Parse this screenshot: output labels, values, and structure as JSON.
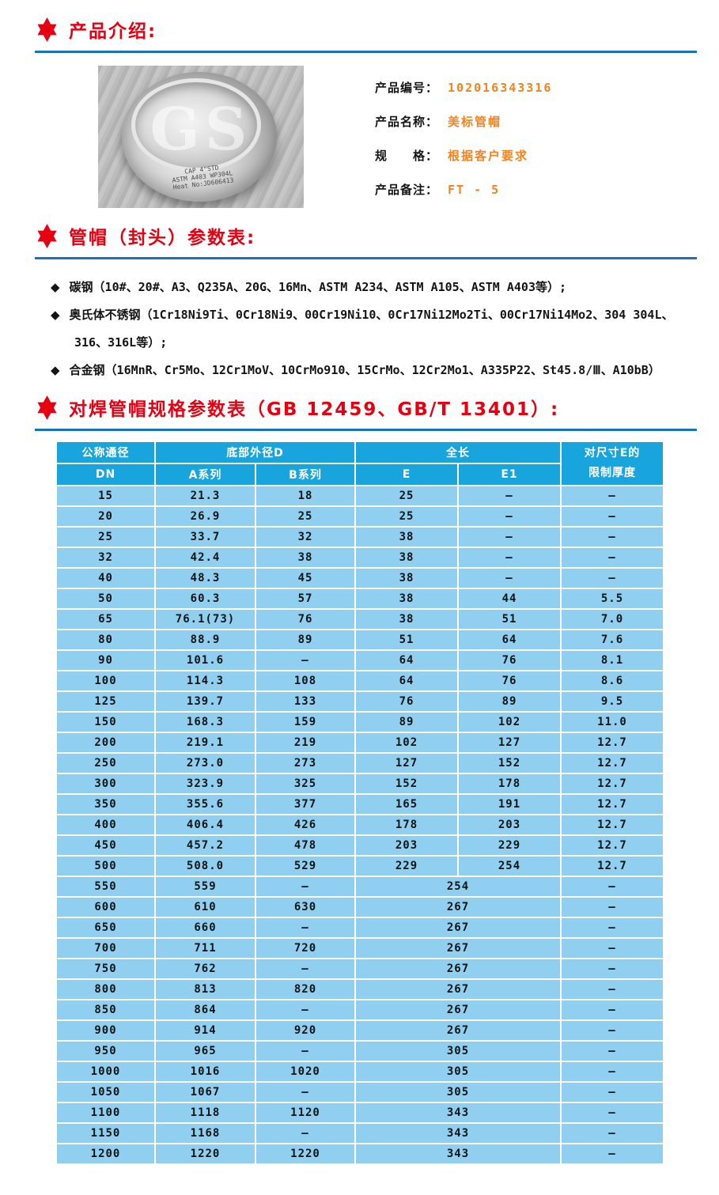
{
  "colors": {
    "section_title_red": "#e60012",
    "star_red": "#e60012",
    "divider_blue": "#1873bb",
    "value_orange": "#f5831f",
    "table_header_bg": "#18a4dd",
    "table_header_text": "#ffffff",
    "table_row_bg": "#90cff0",
    "table_cell_text": "#141414"
  },
  "sections": {
    "intro_title": "产品介绍:",
    "params_title": "管帽（封头）参数表:",
    "spec_title": "对焊管帽规格参数表（GB 12459、GB/T 13401）:"
  },
  "product": {
    "image": {
      "watermark": "GS",
      "engraving": [
        "CAP 4\"STD",
        "ASTM A403 WP304L",
        "Heat No:JD606413"
      ]
    },
    "fields": [
      {
        "label": "产品编号：",
        "value": "102016343316"
      },
      {
        "label": "产品名称：",
        "value": "美标管帽"
      },
      {
        "label": "规　　格：",
        "value": "根据客户要求"
      },
      {
        "label": "产品备注：",
        "value": "FT - 5"
      }
    ]
  },
  "materials": {
    "bullet": "◆",
    "items": [
      "碳钢（10#、20#、A3、Q235A、20G、16Mn、ASTM A234、ASTM A105、ASTM A403等）;",
      "奥氏体不锈钢（1Cr18Ni9Ti、0Cr18Ni9、00Cr19Ni10、0Cr17Ni12Mo2Ti、00Cr17Ni14Mo2、304 304L、316、316L等）;",
      "合金钢（16MnR、Cr5Mo、12Cr1MoV、10CrMo910、15CrMo、12Cr2Mo1、A335P22、St45.8/Ⅲ、A10bB）"
    ]
  },
  "table": {
    "header": {
      "dn_top": "公称通径",
      "dn_bottom": "DN",
      "group_d": "底部外径D",
      "col_a": "A系列",
      "col_b": "B系列",
      "group_len": "全长",
      "col_e": "E",
      "col_e1": "E1",
      "thickness_line1": "对尺寸E的",
      "thickness_line2": "限制厚度"
    },
    "rows": [
      {
        "dn": "15",
        "a": "21.3",
        "b": "18",
        "e": "25",
        "e1": "–",
        "t": "–",
        "merged": false
      },
      {
        "dn": "20",
        "a": "26.9",
        "b": "25",
        "e": "25",
        "e1": "–",
        "t": "–",
        "merged": false
      },
      {
        "dn": "25",
        "a": "33.7",
        "b": "32",
        "e": "38",
        "e1": "–",
        "t": "–",
        "merged": false
      },
      {
        "dn": "32",
        "a": "42.4",
        "b": "38",
        "e": "38",
        "e1": "–",
        "t": "–",
        "merged": false
      },
      {
        "dn": "40",
        "a": "48.3",
        "b": "45",
        "e": "38",
        "e1": "–",
        "t": "–",
        "merged": false
      },
      {
        "dn": "50",
        "a": "60.3",
        "b": "57",
        "e": "38",
        "e1": "44",
        "t": "5.5",
        "merged": false
      },
      {
        "dn": "65",
        "a": "76.1(73)",
        "b": "76",
        "e": "38",
        "e1": "51",
        "t": "7.0",
        "merged": false
      },
      {
        "dn": "80",
        "a": "88.9",
        "b": "89",
        "e": "51",
        "e1": "64",
        "t": "7.6",
        "merged": false
      },
      {
        "dn": "90",
        "a": "101.6",
        "b": "–",
        "e": "64",
        "e1": "76",
        "t": "8.1",
        "merged": false
      },
      {
        "dn": "100",
        "a": "114.3",
        "b": "108",
        "e": "64",
        "e1": "76",
        "t": "8.6",
        "merged": false
      },
      {
        "dn": "125",
        "a": "139.7",
        "b": "133",
        "e": "76",
        "e1": "89",
        "t": "9.5",
        "merged": false
      },
      {
        "dn": "150",
        "a": "168.3",
        "b": "159",
        "e": "89",
        "e1": "102",
        "t": "11.0",
        "merged": false
      },
      {
        "dn": "200",
        "a": "219.1",
        "b": "219",
        "e": "102",
        "e1": "127",
        "t": "12.7",
        "merged": false
      },
      {
        "dn": "250",
        "a": "273.0",
        "b": "273",
        "e": "127",
        "e1": "152",
        "t": "12.7",
        "merged": false
      },
      {
        "dn": "300",
        "a": "323.9",
        "b": "325",
        "e": "152",
        "e1": "178",
        "t": "12.7",
        "merged": false
      },
      {
        "dn": "350",
        "a": "355.6",
        "b": "377",
        "e": "165",
        "e1": "191",
        "t": "12.7",
        "merged": false
      },
      {
        "dn": "400",
        "a": "406.4",
        "b": "426",
        "e": "178",
        "e1": "203",
        "t": "12.7",
        "merged": false
      },
      {
        "dn": "450",
        "a": "457.2",
        "b": "478",
        "e": "203",
        "e1": "229",
        "t": "12.7",
        "merged": false
      },
      {
        "dn": "500",
        "a": "508.0",
        "b": "529",
        "e": "229",
        "e1": "254",
        "t": "12.7",
        "merged": false
      },
      {
        "dn": "550",
        "a": "559",
        "b": "–",
        "e": "254",
        "e1": "",
        "t": "–",
        "merged": true
      },
      {
        "dn": "600",
        "a": "610",
        "b": "630",
        "e": "267",
        "e1": "",
        "t": "–",
        "merged": true
      },
      {
        "dn": "650",
        "a": "660",
        "b": "–",
        "e": "267",
        "e1": "",
        "t": "–",
        "merged": true
      },
      {
        "dn": "700",
        "a": "711",
        "b": "720",
        "e": "267",
        "e1": "",
        "t": "–",
        "merged": true
      },
      {
        "dn": "750",
        "a": "762",
        "b": "–",
        "e": "267",
        "e1": "",
        "t": "–",
        "merged": true
      },
      {
        "dn": "800",
        "a": "813",
        "b": "820",
        "e": "267",
        "e1": "",
        "t": "–",
        "merged": true
      },
      {
        "dn": "850",
        "a": "864",
        "b": "–",
        "e": "267",
        "e1": "",
        "t": "–",
        "merged": true
      },
      {
        "dn": "900",
        "a": "914",
        "b": "920",
        "e": "267",
        "e1": "",
        "t": "–",
        "merged": true
      },
      {
        "dn": "950",
        "a": "965",
        "b": "–",
        "e": "305",
        "e1": "",
        "t": "–",
        "merged": true
      },
      {
        "dn": "1000",
        "a": "1016",
        "b": "1020",
        "e": "305",
        "e1": "",
        "t": "–",
        "merged": true
      },
      {
        "dn": "1050",
        "a": "1067",
        "b": "–",
        "e": "305",
        "e1": "",
        "t": "–",
        "merged": true
      },
      {
        "dn": "1100",
        "a": "1118",
        "b": "1120",
        "e": "343",
        "e1": "",
        "t": "–",
        "merged": true
      },
      {
        "dn": "1150",
        "a": "1168",
        "b": "–",
        "e": "343",
        "e1": "",
        "t": "–",
        "merged": true
      },
      {
        "dn": "1200",
        "a": "1220",
        "b": "1220",
        "e": "343",
        "e1": "",
        "t": "–",
        "merged": true
      }
    ]
  }
}
